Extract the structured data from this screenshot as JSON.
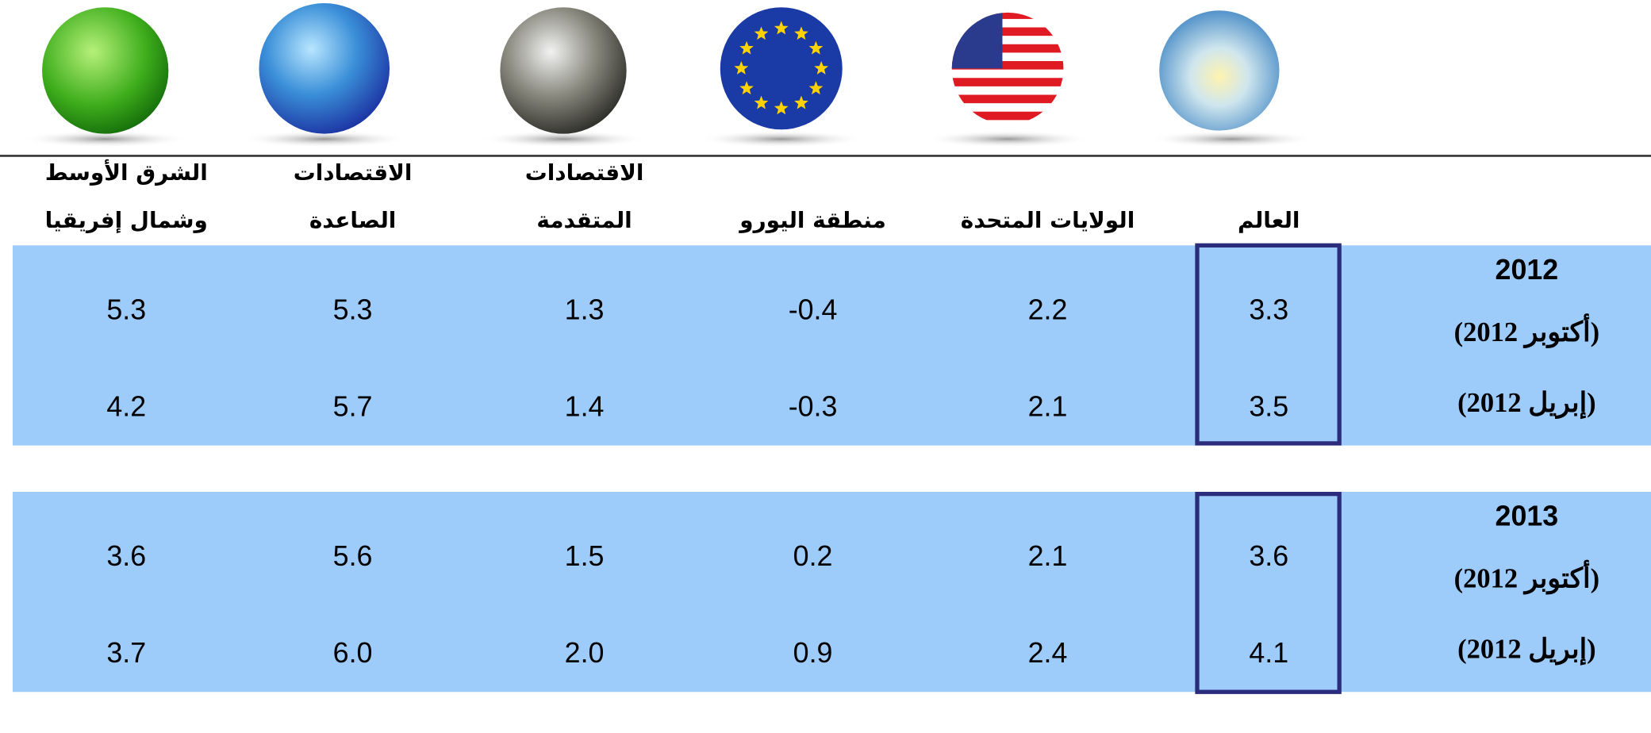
{
  "header": {
    "columns": [
      [
        "العالم"
      ],
      [
        "الولايات المتحدة"
      ],
      [
        "منطقة اليورو"
      ],
      [
        "الاقتصادات",
        "المتقدمة"
      ],
      [
        "الاقتصادات",
        "الصاعدة"
      ],
      [
        "الشرق الأوسط",
        "وشمال إفريقيا"
      ]
    ]
  },
  "sections": [
    {
      "year": "2012",
      "rows": [
        {
          "label": "(أكتوبر 2012)",
          "values": [
            "3.3",
            "2.2",
            "-0.4",
            "1.3",
            "5.3",
            "5.3"
          ]
        },
        {
          "label": "(إبريل 2012)",
          "values": [
            "3.5",
            "2.1",
            "-0.3",
            "1.4",
            "5.7",
            "4.2"
          ]
        }
      ]
    },
    {
      "year": "2013",
      "rows": [
        {
          "label": "(أكتوبر 2012)",
          "values": [
            "3.6",
            "2.1",
            "0.2",
            "1.5",
            "5.6",
            "3.6"
          ]
        },
        {
          "label": "(إبريل 2012)",
          "values": [
            "4.1",
            "2.4",
            "0.9",
            "2.0",
            "6.0",
            "3.7"
          ]
        }
      ]
    }
  ]
}
